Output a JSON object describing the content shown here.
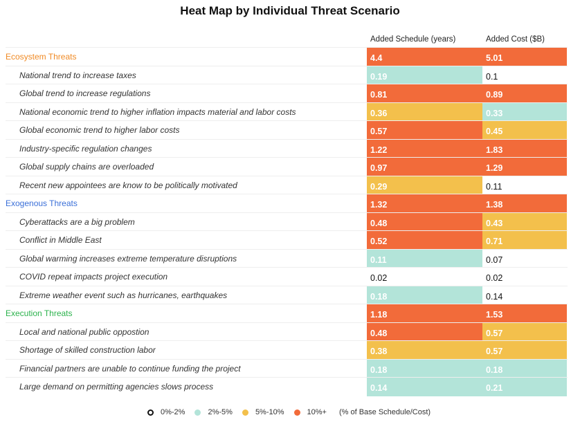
{
  "chart_data": {
    "type": "heatmap",
    "title": "Heat Map by Individual Threat Scenario",
    "columns": [
      "Added Schedule (years)",
      "Added Cost ($B)"
    ],
    "colors": {
      "none": "#ffffff",
      "low": "#b3e4d9",
      "mid": "#f3c04c",
      "high": "#f26b3a"
    },
    "category_colors": {
      "Ecosystem Threats": "#f08a24",
      "Exogenous Threats": "#3a6fd8",
      "Execution Threats": "#2bb24c"
    },
    "rows": [
      {
        "label": "Ecosystem Threats",
        "type": "category",
        "values": [
          4.4,
          5.01
        ],
        "levels": [
          "high",
          "high"
        ]
      },
      {
        "label": "National trend to increase taxes",
        "type": "item",
        "values": [
          0.19,
          0.1
        ],
        "levels": [
          "low",
          "none"
        ]
      },
      {
        "label": "Global trend to increase regulations",
        "type": "item",
        "values": [
          0.81,
          0.89
        ],
        "levels": [
          "high",
          "high"
        ]
      },
      {
        "label": "National economic trend to higher inflation impacts material and labor costs",
        "type": "item",
        "values": [
          0.36,
          0.33
        ],
        "levels": [
          "mid",
          "low"
        ]
      },
      {
        "label": "Global economic trend to higher labor costs",
        "type": "item",
        "values": [
          0.57,
          0.45
        ],
        "levels": [
          "high",
          "mid"
        ]
      },
      {
        "label": "Industry-specific regulation changes",
        "type": "item",
        "values": [
          1.22,
          1.83
        ],
        "levels": [
          "high",
          "high"
        ]
      },
      {
        "label": "Global supply chains are overloaded",
        "type": "item",
        "values": [
          0.97,
          1.29
        ],
        "levels": [
          "high",
          "high"
        ]
      },
      {
        "label": "Recent new appointees are know to be politically motivated",
        "type": "item",
        "values": [
          0.29,
          0.11
        ],
        "levels": [
          "mid",
          "none"
        ]
      },
      {
        "label": "Exogenous Threats",
        "type": "category",
        "values": [
          1.32,
          1.38
        ],
        "levels": [
          "high",
          "high"
        ]
      },
      {
        "label": "Cyberattacks are a big problem",
        "type": "item",
        "values": [
          0.48,
          0.43
        ],
        "levels": [
          "high",
          "mid"
        ]
      },
      {
        "label": "Conflict in Middle East",
        "type": "item",
        "values": [
          0.52,
          0.71
        ],
        "levels": [
          "high",
          "mid"
        ]
      },
      {
        "label": "Global warming increases extreme temperature disruptions",
        "type": "item",
        "values": [
          0.11,
          0.07
        ],
        "levels": [
          "low",
          "none"
        ]
      },
      {
        "label": "COVID repeat impacts project execution",
        "type": "item",
        "values": [
          0.02,
          0.02
        ],
        "levels": [
          "none",
          "none"
        ]
      },
      {
        "label": "Extreme weather event such as hurricanes, earthquakes",
        "type": "item",
        "values": [
          0.18,
          0.14
        ],
        "levels": [
          "low",
          "none"
        ]
      },
      {
        "label": "Execution Threats",
        "type": "category",
        "values": [
          1.18,
          1.53
        ],
        "levels": [
          "high",
          "high"
        ]
      },
      {
        "label": "Local and national public oppostion",
        "type": "item",
        "values": [
          0.48,
          0.57
        ],
        "levels": [
          "high",
          "mid"
        ]
      },
      {
        "label": "Shortage of skilled construction labor",
        "type": "item",
        "values": [
          0.38,
          0.57
        ],
        "levels": [
          "mid",
          "mid"
        ]
      },
      {
        "label": "Financial partners are unable to continue funding the project",
        "type": "item",
        "values": [
          0.18,
          0.18
        ],
        "levels": [
          "low",
          "low"
        ]
      },
      {
        "label": "Large demand on permitting agencies slows process",
        "type": "item",
        "values": [
          0.14,
          0.21
        ],
        "levels": [
          "low",
          "low"
        ]
      }
    ],
    "legend": {
      "entries": [
        {
          "label": "0%-2%",
          "level": "none"
        },
        {
          "label": "2%-5%",
          "level": "low"
        },
        {
          "label": "5%-10%",
          "level": "mid"
        },
        {
          "label": "10%+",
          "level": "high"
        }
      ],
      "note": "(% of Base Schedule/Cost)",
      "placement": "bottom"
    }
  }
}
